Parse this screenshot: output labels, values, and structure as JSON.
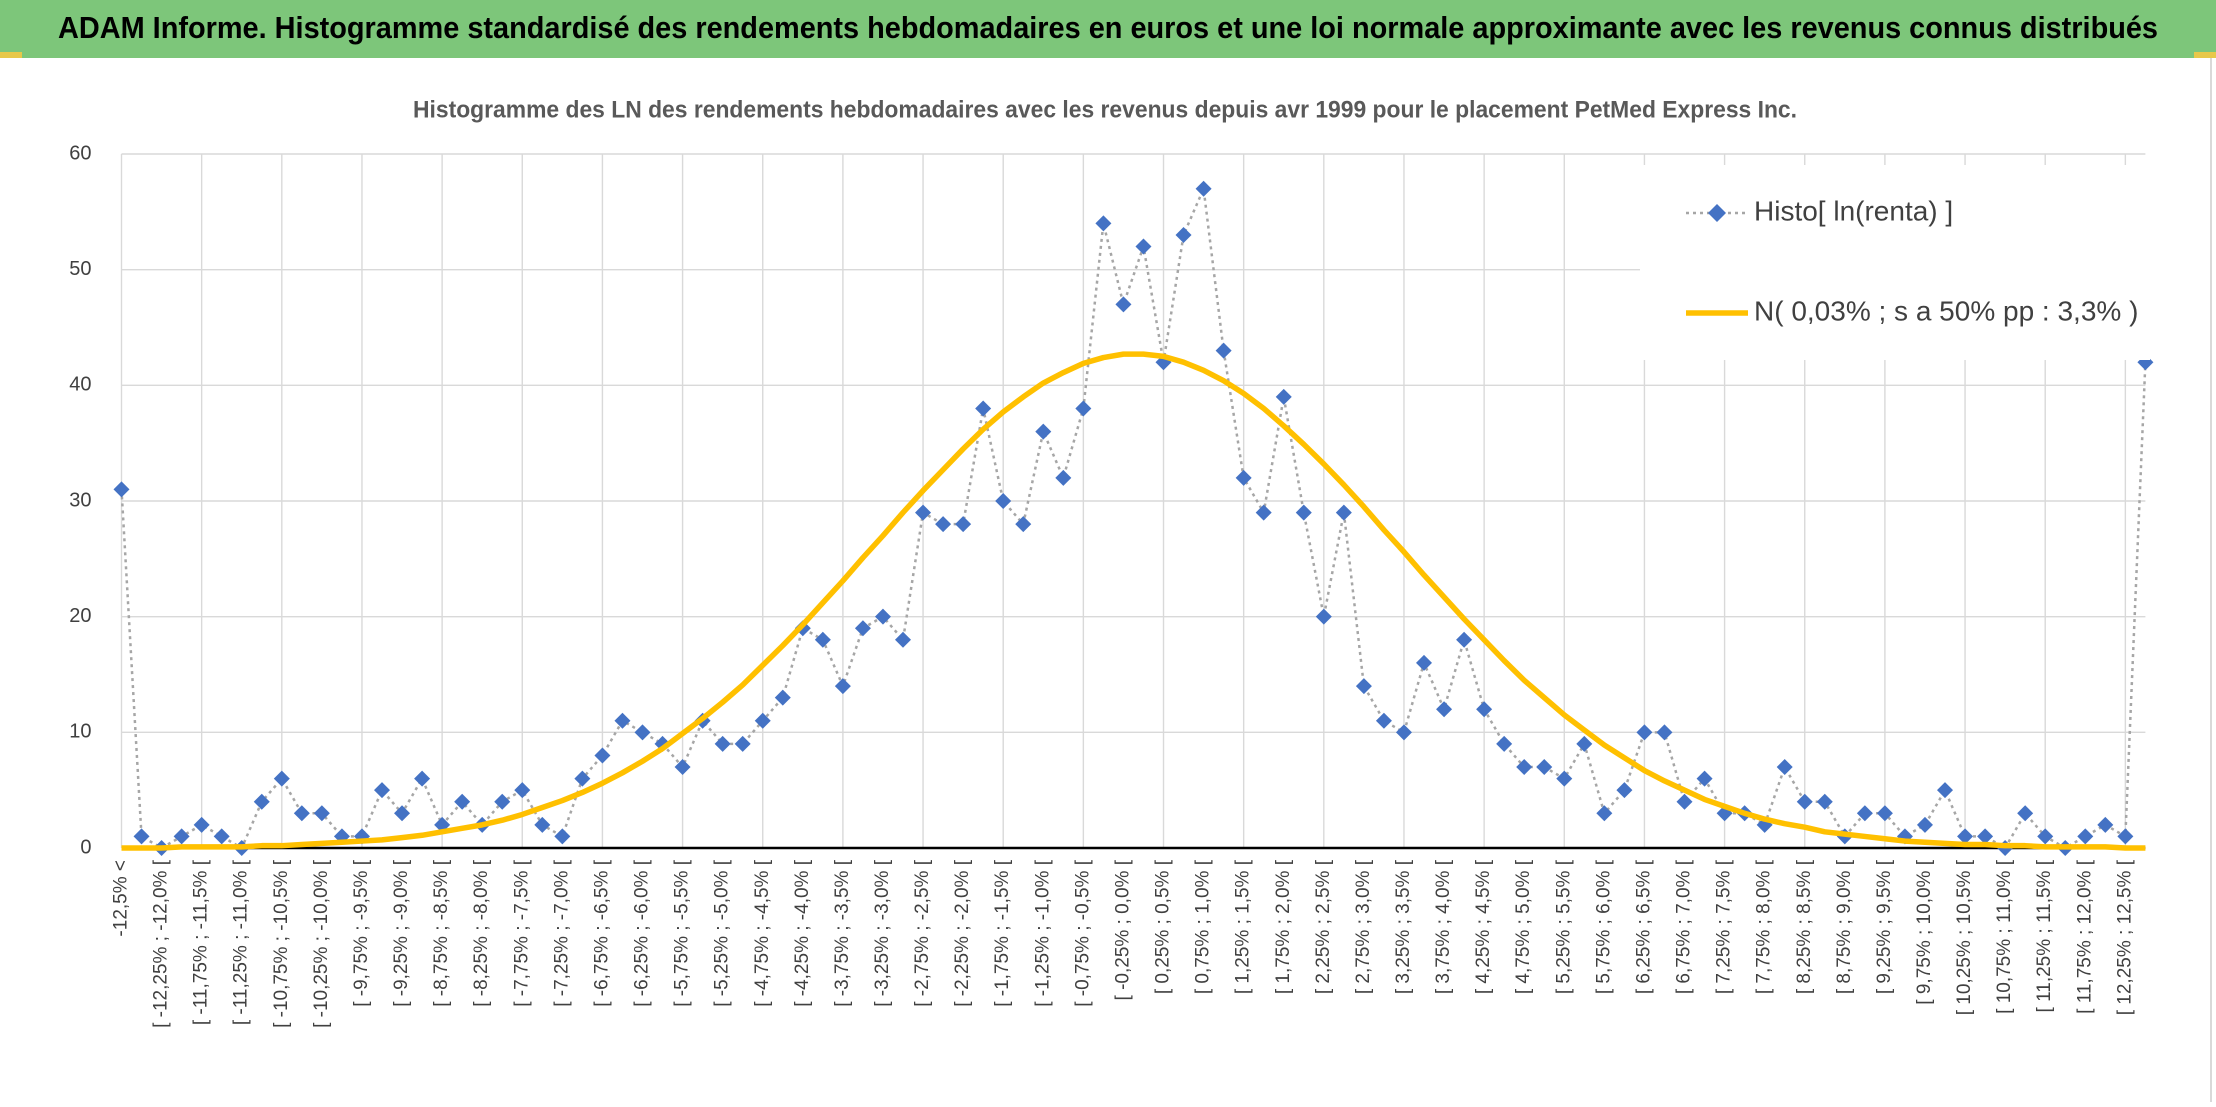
{
  "page_title": "ADAM Informe. Histogramme standardisé des rendements hebdomadaires en euros et une loi normale approximante avec les revenus connus distribués",
  "chart_data": {
    "type": "line",
    "title": "Histogramme des LN des rendements hebdomadaires avec les revenus depuis avr 1999 pour le placement PetMed Express Inc.",
    "categories": [
      "-12,5% <",
      null,
      "[ -12,25% ; -12,0% [",
      null,
      "[ -11,75% ; -11,5% [",
      null,
      "[ -11,25% ; -11,0% [",
      null,
      "[ -10,75% ; -10,5% [",
      null,
      "[ -10,25% ; -10,0% [",
      null,
      "[ -9,75% ; -9,5% [",
      null,
      "[ -9,25% ; -9,0% [",
      null,
      "[ -8,75% ; -8,5% [",
      null,
      "[ -8,25% ; -8,0% [",
      null,
      "[ -7,75% ; -7,5% [",
      null,
      "[ -7,25% ; -7,0% [",
      null,
      "[ -6,75% ; -6,5% [",
      null,
      "[ -6,25% ; -6,0% [",
      null,
      "[ -5,75% ; -5,5% [",
      null,
      "[ -5,25% ; -5,0% [",
      null,
      "[ -4,75% ; -4,5% [",
      null,
      "[ -4,25% ; -4,0% [",
      null,
      "[ -3,75% ; -3,5% [",
      null,
      "[ -3,25% ; -3,0% [",
      null,
      "[ -2,75% ; -2,5% [",
      null,
      "[ -2,25% ; -2,0% [",
      null,
      "[ -1,75% ; -1,5% [",
      null,
      "[ -1,25% ; -1,0% [",
      null,
      "[ -0,75% ; -0,5% [",
      null,
      "[ -0,25% ; 0,0% [",
      null,
      "[ 0,25% ; 0,5% [",
      null,
      "[ 0,75% ; 1,0% [",
      null,
      "[ 1,25% ; 1,5% [",
      null,
      "[ 1,75% ; 2,0% [",
      null,
      "[ 2,25% ; 2,5% [",
      null,
      "[ 2,75% ; 3,0% [",
      null,
      "[ 3,25% ; 3,5% [",
      null,
      "[ 3,75% ; 4,0% [",
      null,
      "[ 4,25% ; 4,5% [",
      null,
      "[ 4,75% ; 5,0% [",
      null,
      "[ 5,25% ; 5,5% [",
      null,
      "[ 5,75% ; 6,0% [",
      null,
      "[ 6,25% ; 6,5% [",
      null,
      "[ 6,75% ; 7,0% [",
      null,
      "[ 7,25% ; 7,5% [",
      null,
      "[ 7,75% ; 8,0% [",
      null,
      "[ 8,25% ; 8,5% [",
      null,
      "[ 8,75% ; 9,0% [",
      null,
      "[ 9,25% ; 9,5% [",
      null,
      "[ 9,75% ; 10,0% [",
      null,
      "[ 10,25% ; 10,5% [",
      null,
      "[ 10,75% ; 11,0% [",
      null,
      "[ 11,25% ; 11,5% [",
      null,
      "[ 11,75% ; 12,0% [",
      null,
      "[ 12,25% ; 12,5% [",
      null
    ],
    "series": [
      {
        "name": "Histo[ ln(renta) ]",
        "color": "#4472c4",
        "line_color": "#a6a6a6",
        "values": [
          31,
          1,
          0,
          1,
          2,
          1,
          0,
          4,
          6,
          3,
          3,
          1,
          1,
          5,
          3,
          6,
          2,
          4,
          2,
          4,
          5,
          2,
          1,
          6,
          8,
          11,
          10,
          9,
          7,
          11,
          9,
          9,
          11,
          13,
          19,
          18,
          14,
          19,
          20,
          18,
          29,
          28,
          28,
          38,
          30,
          28,
          36,
          32,
          38,
          54,
          47,
          52,
          42,
          53,
          57,
          43,
          32,
          29,
          39,
          29,
          20,
          29,
          14,
          11,
          10,
          16,
          12,
          18,
          12,
          9,
          7,
          7,
          6,
          9,
          3,
          5,
          10,
          10,
          4,
          6,
          3,
          3,
          2,
          7,
          4,
          4,
          1,
          3,
          3,
          1,
          2,
          5,
          1,
          1,
          0,
          3,
          1,
          0,
          1,
          2,
          1,
          42
        ]
      },
      {
        "name": "N( 0,03% ; s a 50% pp : 3,3% )",
        "color": "#ffc000",
        "values": [
          0,
          0,
          0,
          0.1,
          0.1,
          0.1,
          0.1,
          0.2,
          0.2,
          0.3,
          0.4,
          0.5,
          0.6,
          0.7,
          0.9,
          1.1,
          1.4,
          1.7,
          2,
          2.4,
          2.9,
          3.5,
          4.1,
          4.8,
          5.6,
          6.5,
          7.5,
          8.6,
          9.9,
          11.2,
          12.6,
          14.1,
          15.8,
          17.5,
          19.3,
          21.2,
          23.1,
          25.1,
          27,
          29,
          30.9,
          32.7,
          34.5,
          36.2,
          37.7,
          39,
          40.2,
          41.1,
          41.9,
          42.4,
          42.7,
          42.7,
          42.5,
          42,
          41.3,
          40.4,
          39.3,
          38,
          36.5,
          34.9,
          33.2,
          31.4,
          29.5,
          27.5,
          25.6,
          23.6,
          21.7,
          19.8,
          18,
          16.2,
          14.5,
          13,
          11.5,
          10.2,
          8.9,
          7.8,
          6.7,
          5.8,
          5,
          4.2,
          3.6,
          3,
          2.5,
          2.1,
          1.8,
          1.4,
          1.2,
          1,
          0.8,
          0.6,
          0.5,
          0.4,
          0.3,
          0.3,
          0.2,
          0.2,
          0.1,
          0.1,
          0.1,
          0.1,
          0,
          0
        ]
      }
    ],
    "ylim": [
      0,
      60
    ],
    "yticks": [
      0,
      10,
      20,
      30,
      40,
      50,
      60
    ],
    "grid": true,
    "legend": "upper right"
  }
}
